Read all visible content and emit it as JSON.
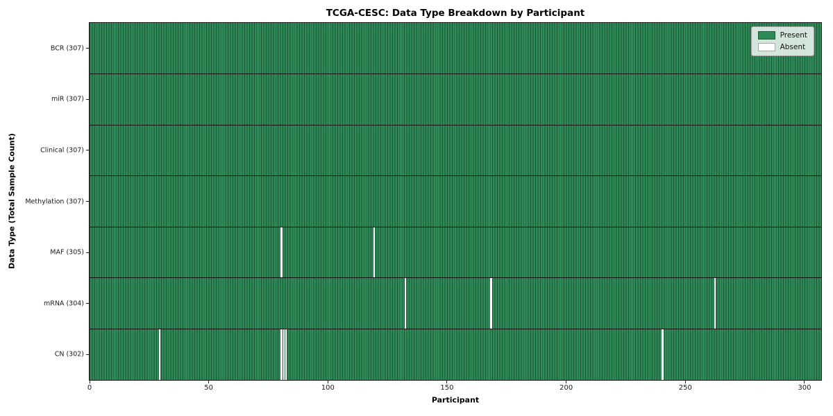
{
  "chart_data": {
    "type": "heatmap",
    "title": "TCGA-CESC: Data Type Breakdown by Participant",
    "xlabel": "Participant",
    "ylabel": "Data Type (Total Sample Count)",
    "n_participants": 307,
    "x_range": [
      0,
      307
    ],
    "x_ticks": [
      0,
      50,
      100,
      150,
      200,
      250,
      300
    ],
    "rows": [
      {
        "label": "BCR (307)",
        "data_type": "BCR",
        "total": 307,
        "absent": []
      },
      {
        "label": "miR (307)",
        "data_type": "miR",
        "total": 307,
        "absent": []
      },
      {
        "label": "Clinical (307)",
        "data_type": "Clinical",
        "total": 307,
        "absent": []
      },
      {
        "label": "Methylation (307)",
        "data_type": "Methylation",
        "total": 307,
        "absent": []
      },
      {
        "label": "MAF (305)",
        "data_type": "MAF",
        "total": 305,
        "absent": [
          80,
          119
        ]
      },
      {
        "label": "mRNA (304)",
        "data_type": "mRNA",
        "total": 304,
        "absent": [
          132,
          168,
          262
        ]
      },
      {
        "label": "CN (302)",
        "data_type": "CN",
        "total": 302,
        "absent": [
          29,
          80,
          81,
          82,
          240
        ]
      }
    ],
    "legend": {
      "position": "upper right",
      "entries": [
        {
          "label": "Present",
          "color": "#2e8b57"
        },
        {
          "label": "Absent",
          "color": "#ffffff"
        }
      ]
    },
    "colors": {
      "present": "#2e8b57",
      "absent": "#ffffff",
      "cell_edge": "#1c5434",
      "row_divider": "#111111",
      "axis": "#1a1a1a",
      "legend_bg": "rgba(255,255,255,0.8)"
    },
    "grid": false
  }
}
